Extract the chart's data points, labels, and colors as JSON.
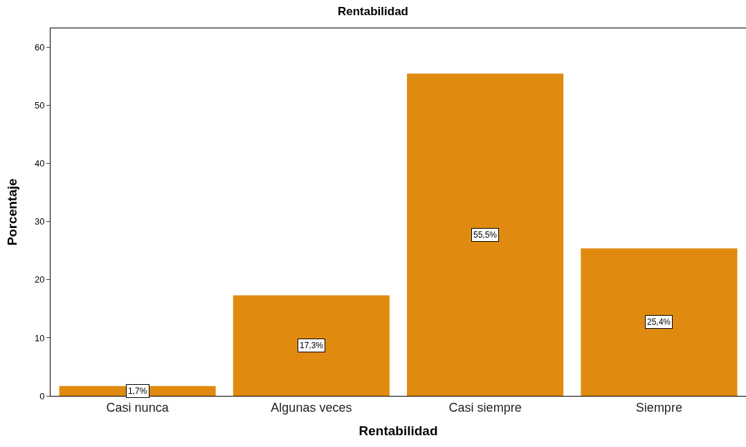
{
  "chart_data": {
    "type": "bar",
    "title": "Rentabilidad",
    "xlabel": "Rentabilidad",
    "ylabel": "Porcentaje",
    "categories": [
      "Casi nunca",
      "Algunas veces",
      "Casi siempre",
      "Siempre"
    ],
    "values": [
      1.7,
      17.3,
      55.5,
      25.4
    ],
    "value_labels": [
      "1,7%",
      "17,3%",
      "55,5%",
      "25,4%"
    ],
    "color": "#e08b10",
    "ylim": [
      0,
      63.3
    ],
    "yticks": [
      0,
      10,
      20,
      30,
      40,
      50,
      60
    ],
    "legend": false
  }
}
